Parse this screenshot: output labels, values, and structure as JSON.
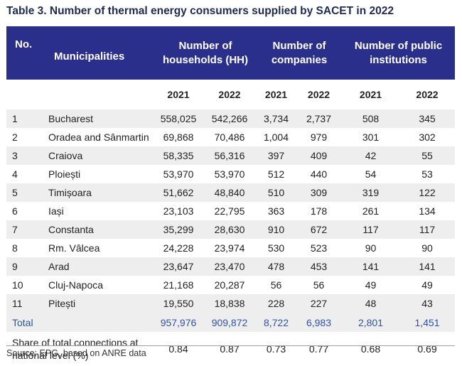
{
  "title": "Table 3. Number of thermal energy consumers supplied by SACET in 2022",
  "header": {
    "no": "No.",
    "municipalities": "Municipalities",
    "households_line1": "Number of",
    "households_line2": "households (HH)",
    "companies_line1": "Number of",
    "companies_line2": "companies",
    "institutions_line1": "Number of public",
    "institutions_line2": "institutions"
  },
  "years": [
    "2021",
    "2022",
    "2021",
    "2022",
    "2021",
    "2022"
  ],
  "rows": [
    {
      "no": "1",
      "name": "Bucharest",
      "values": [
        "558,025",
        "542,266",
        "3,734",
        "2,737",
        "508",
        "345"
      ]
    },
    {
      "no": "2",
      "name": "Oradea and Sânmartin",
      "values": [
        "69,868",
        "70,486",
        "1,004",
        "979",
        "301",
        "302"
      ]
    },
    {
      "no": "3",
      "name": "Craiova",
      "values": [
        "58,335",
        "56,316",
        "397",
        "409",
        "42",
        "55"
      ]
    },
    {
      "no": "4",
      "name": "Ploiești",
      "values": [
        "53,970",
        "53,970",
        "512",
        "440",
        "54",
        "53"
      ]
    },
    {
      "no": "5",
      "name": "Timișoara",
      "values": [
        "51,662",
        "48,840",
        "510",
        "309",
        "319",
        "122"
      ]
    },
    {
      "no": "6",
      "name": "Iași",
      "values": [
        "23,103",
        "22,795",
        "363",
        "178",
        "261",
        "134"
      ]
    },
    {
      "no": "7",
      "name": "Constanta",
      "values": [
        "35,299",
        "28,630",
        "910",
        "672",
        "117",
        "117"
      ]
    },
    {
      "no": "8",
      "name": "Rm. Vâlcea",
      "values": [
        "24,228",
        "23,974",
        "530",
        "523",
        "90",
        "90"
      ]
    },
    {
      "no": "9",
      "name": "Arad",
      "values": [
        "23,647",
        "23,470",
        "478",
        "453",
        "141",
        "141"
      ]
    },
    {
      "no": "10",
      "name": "Cluj-Napoca",
      "values": [
        "21,168",
        "20,287",
        "56",
        "56",
        "49",
        "49"
      ]
    },
    {
      "no": "11",
      "name": "Pitești",
      "values": [
        "19,550",
        "18,838",
        "228",
        "227",
        "48",
        "43"
      ]
    }
  ],
  "total": {
    "label": "Total",
    "values": [
      "957,976",
      "909,872",
      "8,722",
      "6,983",
      "2,801",
      "1,451"
    ]
  },
  "share": {
    "label_line1": "Share of total connections at",
    "label_line2": "national level (%)",
    "values": [
      "0.84",
      "0.87",
      "0.73",
      "0.77",
      "0.68",
      "0.69"
    ]
  },
  "source": "Source: EPG, based on ANRE data",
  "colors": {
    "header_bg": "#2b2f8c",
    "header_text": "#ffffff",
    "total_text": "#2f52a8",
    "stripe": "#eeeeee"
  }
}
